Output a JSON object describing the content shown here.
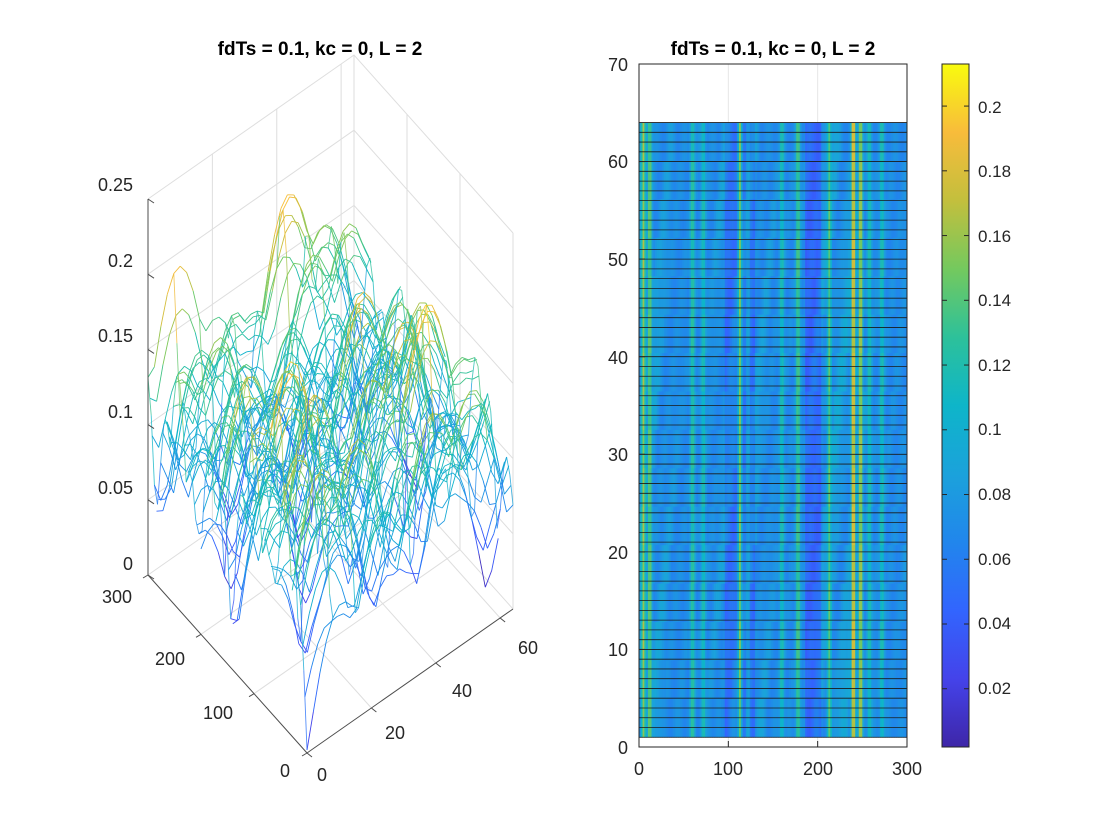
{
  "chart_data": [
    {
      "type": "surface",
      "title": "fdTs = 0.1, kc = 0, L = 2",
      "x_ticks": [
        "0",
        "20",
        "40",
        "60"
      ],
      "y_ticks": [
        "0",
        "100",
        "200",
        "300"
      ],
      "z_ticks": [
        "0",
        "0.05",
        "0.1",
        "0.15",
        "0.2",
        "0.25"
      ],
      "xlim": [
        0,
        64
      ],
      "ylim": [
        0,
        300
      ],
      "zlim": [
        0,
        0.25
      ],
      "grid": true,
      "colormap": "parula"
    },
    {
      "type": "heatmap",
      "title": "fdTs = 0.1, kc = 0, L = 2",
      "x_ticks": [
        "0",
        "100",
        "200",
        "300"
      ],
      "y_ticks": [
        "0",
        "10",
        "20",
        "30",
        "40",
        "50",
        "60",
        "70"
      ],
      "xlim": [
        0,
        300
      ],
      "ylim": [
        0,
        70
      ],
      "data_ylim": [
        1,
        64
      ],
      "rows": 64,
      "columns": 300,
      "colorbar_ticks": [
        "0.02",
        "0.04",
        "0.06",
        "0.08",
        "0.1",
        "0.12",
        "0.14",
        "0.16",
        "0.18",
        "0.2"
      ],
      "color_range": [
        0.002,
        0.213
      ],
      "column_peaks": [
        {
          "x": 5,
          "value": 0.16
        },
        {
          "x": 12,
          "value": 0.15
        },
        {
          "x": 60,
          "value": 0.13
        },
        {
          "x": 72,
          "value": 0.12
        },
        {
          "x": 113,
          "value": 0.17
        },
        {
          "x": 122,
          "value": 0.11
        },
        {
          "x": 160,
          "value": 0.12
        },
        {
          "x": 178,
          "value": 0.14
        },
        {
          "x": 213,
          "value": 0.14
        },
        {
          "x": 240,
          "value": 0.19
        },
        {
          "x": 248,
          "value": 0.17
        },
        {
          "x": 258,
          "value": 0.12
        },
        {
          "x": 272,
          "value": 0.12
        }
      ],
      "baseline_value": 0.07
    }
  ]
}
